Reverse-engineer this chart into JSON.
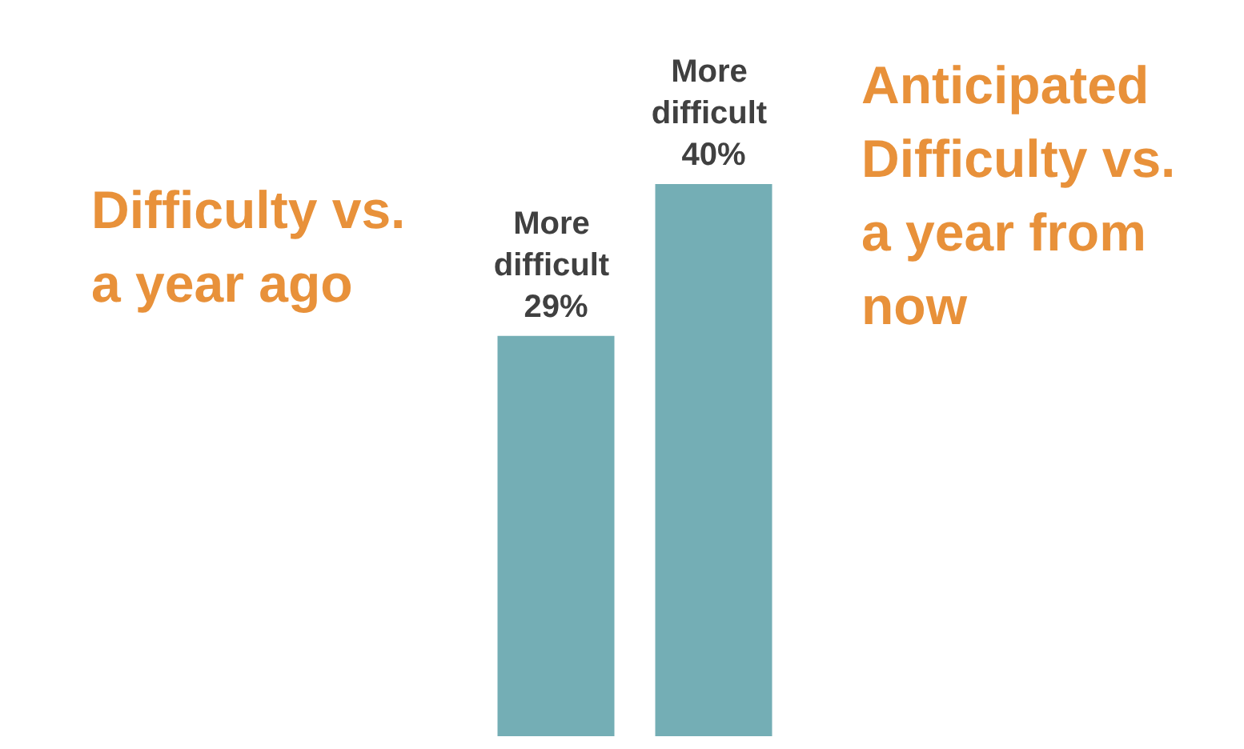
{
  "chart_data": {
    "type": "bar",
    "categories": [
      null,
      null
    ],
    "values": [
      29,
      40
    ],
    "color": "#74aeb5",
    "value_labels": [
      "More difficult 29%",
      "More difficult 40%"
    ],
    "annotations": [
      "Difficulty vs. a year ago",
      "Anticipated Difficulty vs. a year from now"
    ]
  }
}
